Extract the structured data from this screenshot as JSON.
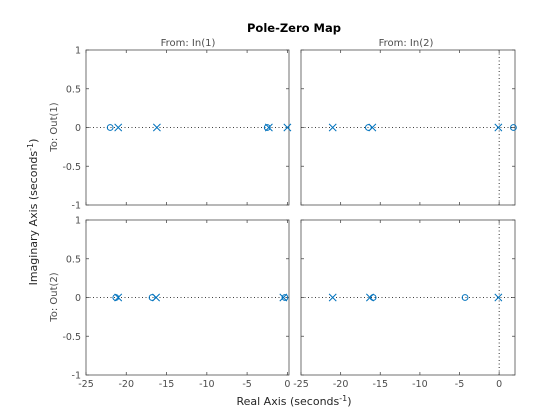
{
  "chart_data": {
    "type": "scatter",
    "title": "Pole-Zero Map",
    "xlabel": "Real Axis (seconds",
    "xlabel_sup": "-1",
    "ylabel": "Imaginary Axis (seconds",
    "ylabel_sup": "-1",
    "inputs": [
      "From: In(1)",
      "From: In(2)"
    ],
    "outputs": [
      "To: Out(1)",
      "To: Out(2)"
    ],
    "ylim": [
      -1,
      1
    ],
    "yticks": [
      -1,
      -0.5,
      0,
      0.5,
      1
    ],
    "ytick_labels": [
      "-1",
      "-0.5",
      "0",
      "0.5",
      "1"
    ],
    "xticks_col1": [
      -25,
      -20,
      -15,
      -10,
      -5,
      0
    ],
    "xtick_labels_col1": [
      "-25",
      "-20",
      "-15",
      "-10",
      "-5",
      "0"
    ],
    "xticks_col2": [
      -25,
      -20,
      -15,
      -10,
      -5,
      0
    ],
    "xtick_labels_col2": [
      "-25",
      "-20",
      "-15",
      "-10",
      "-5",
      "0"
    ],
    "marker_color": "#0072bd",
    "axes_color": "#4d4d4d",
    "grid": false,
    "subplots": [
      {
        "row": 0,
        "col": 0,
        "xlim": [
          -25,
          0.2
        ],
        "show_imag_axis": false,
        "poles": [
          [
            -21,
            0
          ],
          [
            -16.2,
            0
          ],
          [
            -2.3,
            0
          ],
          [
            0,
            0
          ]
        ],
        "zeros": [
          [
            -22,
            0
          ],
          [
            -2.5,
            0
          ]
        ]
      },
      {
        "row": 0,
        "col": 1,
        "xlim": [
          -25,
          2
        ],
        "show_imag_axis": true,
        "poles": [
          [
            -21,
            0
          ],
          [
            -16,
            0
          ],
          [
            -0.1,
            0
          ]
        ],
        "zeros": [
          [
            -16.5,
            0
          ],
          [
            1.8,
            0
          ]
        ]
      },
      {
        "row": 1,
        "col": 0,
        "xlim": [
          -25,
          0.2
        ],
        "show_imag_axis": false,
        "poles": [
          [
            -21,
            0
          ],
          [
            -16.3,
            0
          ],
          [
            -0.5,
            0
          ]
        ],
        "zeros": [
          [
            -21.3,
            0
          ],
          [
            -16.8,
            0
          ],
          [
            -0.3,
            0
          ]
        ]
      },
      {
        "row": 1,
        "col": 1,
        "xlim": [
          -25,
          2
        ],
        "show_imag_axis": true,
        "poles": [
          [
            -21,
            0
          ],
          [
            -16.3,
            0
          ],
          [
            -0.1,
            0
          ]
        ],
        "zeros": [
          [
            -15.9,
            0
          ],
          [
            -4.3,
            0
          ]
        ]
      }
    ]
  }
}
